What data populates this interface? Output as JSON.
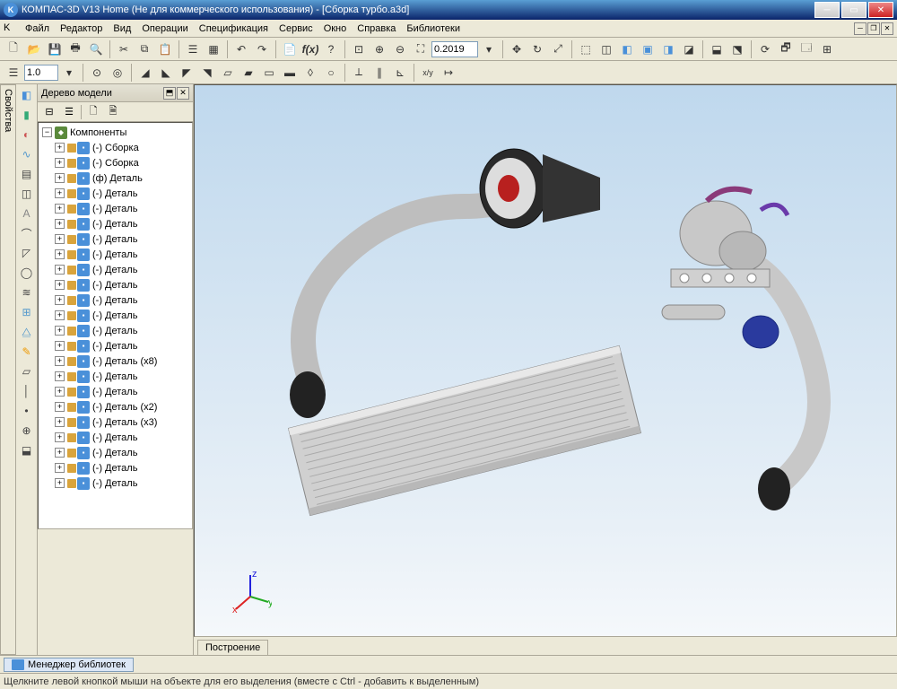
{
  "title": "КОМПАС-3D V13 Home (Не для коммерческого использования) - [Сборка турбо.a3d]",
  "menu": [
    "Файл",
    "Редактор",
    "Вид",
    "Операции",
    "Спецификация",
    "Сервис",
    "Окно",
    "Справка",
    "Библиотеки"
  ],
  "zoom_value": "0.2019",
  "line_weight": "1.0",
  "tree": {
    "header": "Дерево модели",
    "root_expander": "−",
    "root": "Компоненты",
    "items": [
      {
        "label": "(-) Сборка"
      },
      {
        "label": "(-) Сборка"
      },
      {
        "label": "(ф) Деталь"
      },
      {
        "label": "(-) Деталь"
      },
      {
        "label": "(-) Деталь"
      },
      {
        "label": "(-) Деталь"
      },
      {
        "label": "(-) Деталь"
      },
      {
        "label": "(-) Деталь"
      },
      {
        "label": "(-) Деталь"
      },
      {
        "label": "(-) Деталь"
      },
      {
        "label": "(-) Деталь"
      },
      {
        "label": "(-) Деталь"
      },
      {
        "label": "(-) Деталь"
      },
      {
        "label": "(-) Деталь"
      },
      {
        "label": "(-) Деталь (x8)"
      },
      {
        "label": "(-) Деталь"
      },
      {
        "label": "(-) Деталь"
      },
      {
        "label": "(-) Деталь (x2)"
      },
      {
        "label": "(-) Деталь (x3)"
      },
      {
        "label": "(-) Деталь"
      },
      {
        "label": "(-) Деталь"
      },
      {
        "label": "(-) Деталь"
      },
      {
        "label": "(-) Деталь"
      }
    ]
  },
  "tab": "Построение",
  "side_tab": "Свойства",
  "library_manager": "Менеджер библиотек",
  "status": "Щелкните левой кнопкой мыши на объекте для его выделения (вместе с Ctrl - добавить к выделенным)",
  "colors": {
    "canvas_top": "#bfd8ed",
    "canvas_bottom": "#f5f8fb",
    "titlebar_start": "#5a9fd4",
    "titlebar_end": "#0a246a",
    "ui_bg": "#ece9d8",
    "border": "#aca899",
    "highlight": "#316ac5",
    "axis_x": "#d22",
    "axis_y": "#2a2",
    "axis_z": "#22d",
    "model_pipe": "#c8c8c8",
    "model_black": "#222",
    "model_red": "#b8201f",
    "model_blue": "#2a3a9e"
  },
  "gizmo": {
    "x": "x",
    "y": "y",
    "z": "z"
  }
}
